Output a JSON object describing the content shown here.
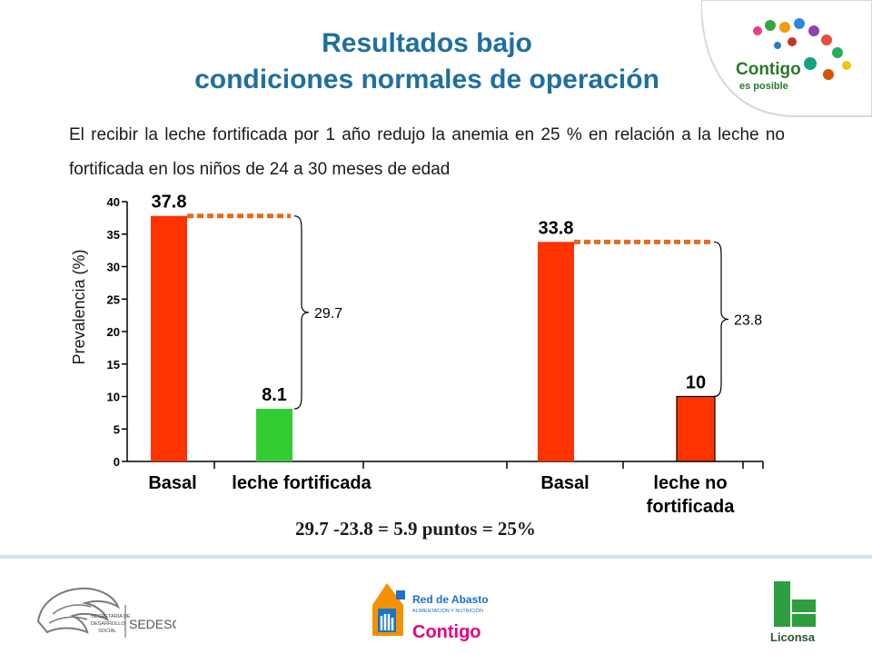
{
  "title_line1": "Resultados bajo",
  "title_line2": "condiciones normales de operación",
  "subtitle": "El recibir la leche fortificada por 1 año redujo la anemia en 25 % en relación a la leche no fortificada en los niños de 24 a 30 meses de edad",
  "colors": {
    "title": "#1f6f9f",
    "bar_red": "#ff3300",
    "bar_green": "#33cc33",
    "dashed": "#e8691e",
    "bar_outline": "#000000"
  },
  "logos": {
    "contigo_main": "Contigo",
    "contigo_sub": "es posible",
    "sedesol_small": "SECRETARÍA DE DESARROLLO SOCIAL",
    "sedesol_big": "SEDESOL",
    "red_abasto_1": "Red de Abasto",
    "red_abasto_2": "ALIMENTACIÓN Y NUTRICIÓN",
    "red_abasto_3": "Contigo",
    "liconsa": "Liconsa"
  },
  "chart_data": {
    "type": "bar",
    "title": "",
    "ylabel": "Prevalencia (%)",
    "xlabel": "",
    "ylim": [
      0,
      40
    ],
    "yticks": [
      0,
      5,
      10,
      15,
      20,
      25,
      30,
      35,
      40
    ],
    "grid": false,
    "categories": [
      "Basal",
      "leche fortificada",
      "Basal",
      "leche no fortificada"
    ],
    "category_label_lines": [
      [
        "Basal"
      ],
      [
        "leche fortificada"
      ],
      [
        "Basal"
      ],
      [
        "leche no",
        "fortificada"
      ]
    ],
    "values": [
      37.8,
      8.1,
      33.8,
      10
    ],
    "value_labels": [
      "37.8",
      "8.1",
      "33.8",
      "10"
    ],
    "bar_colors": [
      "#ff3300",
      "#33cc33",
      "#ff3300",
      "#ff3300"
    ],
    "annotations": [
      {
        "text": "29.7",
        "between": [
          0,
          1
        ]
      },
      {
        "text": "23.8",
        "between": [
          2,
          3
        ]
      }
    ],
    "formula": "29.7 -23.8 = 5.9 puntos = 25%"
  }
}
